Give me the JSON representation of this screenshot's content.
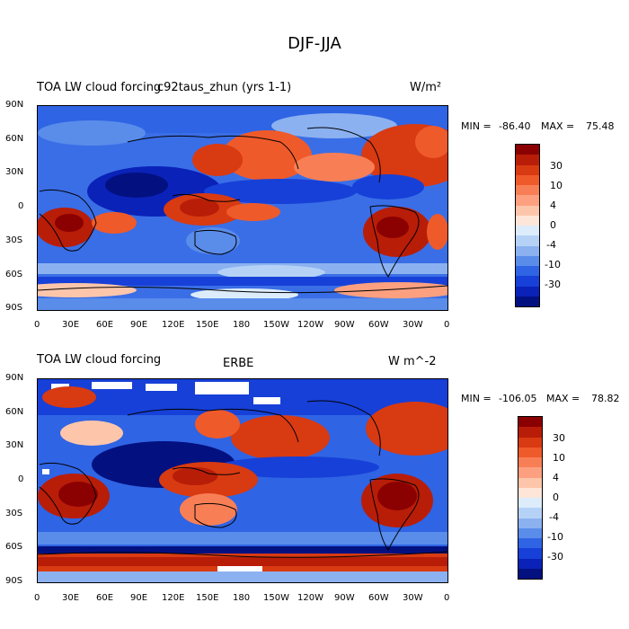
{
  "figure": {
    "title": "DJF-JJA"
  },
  "colorbar_colors": [
    "#8b0000",
    "#b81d08",
    "#d83a12",
    "#ef5a2a",
    "#f87f55",
    "#fca080",
    "#fdc6ab",
    "#fde6d8",
    "#dcecfb",
    "#b5d2f6",
    "#8bb1f0",
    "#5a8cea",
    "#2f64e4",
    "#1740d8",
    "#0a22b8",
    "#031080"
  ],
  "panels": [
    {
      "id": "top",
      "title_left": "TOA LW cloud forcing",
      "title_center": "c92taus_zhun (yrs 1-1)",
      "units": "W/m²",
      "min_label": "MIN =",
      "min": "-86.40",
      "max_label": "MAX =",
      "max": "75.48",
      "colorbar_labels": [
        "30",
        "10",
        "4",
        "0",
        "-4",
        "-10",
        "-30"
      ]
    },
    {
      "id": "bottom",
      "title_left": "TOA LW cloud forcing",
      "title_center": "ERBE",
      "units": "W m^-2",
      "min_label": "MIN =",
      "min": "-106.05",
      "max_label": "MAX =",
      "max": "78.82",
      "colorbar_labels": [
        "30",
        "10",
        "4",
        "0",
        "-4",
        "-10",
        "-30"
      ]
    }
  ],
  "axes": {
    "lat_ticks": [
      "90N",
      "60N",
      "30N",
      "0",
      "30S",
      "60S",
      "90S"
    ],
    "lon_ticks": [
      "0",
      "30E",
      "60E",
      "90E",
      "120E",
      "150E",
      "180",
      "150W",
      "120W",
      "90W",
      "60W",
      "30W",
      "0"
    ]
  }
}
